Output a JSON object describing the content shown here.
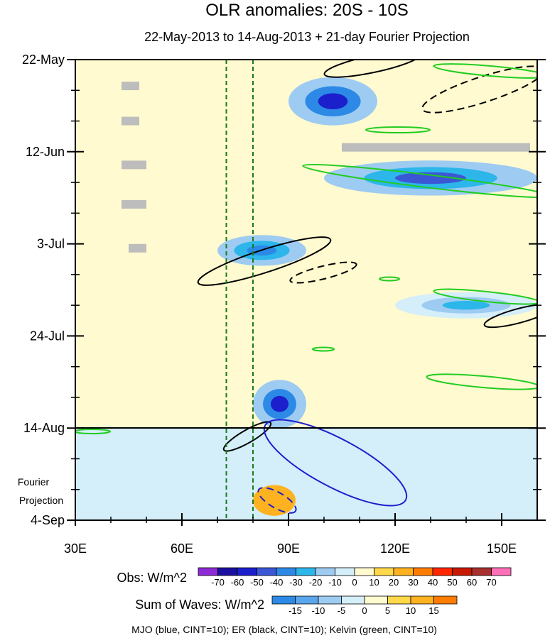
{
  "chart_data": {
    "type": "heatmap",
    "title": "OLR anomalies: 20S - 10S",
    "subtitle": "22-May-2013 to 14-Aug-2013 + 21-day Fourier Projection",
    "x_axis": {
      "range": [
        30,
        160
      ],
      "ticks": [
        30,
        60,
        90,
        120,
        150
      ],
      "tick_labels": [
        "30E",
        "60E",
        "90E",
        "120E",
        "150E"
      ]
    },
    "y_axis": {
      "range": [
        "22-May-2013",
        "4-Sep-2013"
      ],
      "ticks": [
        {
          "date": "2013-05-22",
          "label": "22-May"
        },
        {
          "date": "2013-06-12",
          "label": "12-Jun"
        },
        {
          "date": "2013-07-03",
          "label": "3-Jul"
        },
        {
          "date": "2013-07-24",
          "label": "24-Jul"
        },
        {
          "date": "2013-08-14",
          "label": "14-Aug"
        },
        {
          "date": "2013-09-04",
          "label": "4-Sep"
        }
      ],
      "projection_label_line1": "Fourier",
      "projection_label_line2": "Projection"
    },
    "observation_end": "2013-08-14",
    "reference_lines_lon": [
      72.5,
      80
    ],
    "obs_colorbar": {
      "label": "Obs: W/m^2",
      "levels": [
        "-70",
        "-60",
        "-50",
        "-40",
        "-30",
        "-20",
        "-10",
        "0",
        "10",
        "20",
        "30",
        "40",
        "50",
        "60",
        "70"
      ],
      "colors": [
        "#8e2bd6",
        "#1b0fa0",
        "#1c1fcc",
        "#3b57d6",
        "#2c8ae6",
        "#2cb6ea",
        "#9ecbf2",
        "#d4eefa",
        "#fffacf",
        "#ffd84b",
        "#ffb21f",
        "#ff7c00",
        "#ff2600",
        "#c81800",
        "#a8302f",
        "#ff70b8"
      ]
    },
    "waves_colorbar": {
      "label": "Sum of Waves: W/m^2",
      "levels": [
        "-15",
        "-10",
        "-5",
        "0",
        "5",
        "10",
        "15"
      ],
      "colors": [
        "#2c8ae6",
        "#59a6ec",
        "#9ecbf2",
        "#d4eefa",
        "#fffacf",
        "#ffd84b",
        "#ffb21f",
        "#ff7c00"
      ]
    },
    "contour_legend": "MJO (blue, CINT=10); ER (black, CINT=10); Kelvin (green, CINT=10)",
    "colors": {
      "mjo": "#1c1fcc",
      "er": "#000000",
      "kelvin": "#22cc22",
      "missing": "#bdbdbd",
      "ref_line": "#1a7a1a"
    },
    "anomaly_features": [
      {
        "lon": [
          90,
          115
        ],
        "date": [
          "2013-05-26",
          "2013-06-06"
        ],
        "value": -60,
        "kind": "obs"
      },
      {
        "lon": [
          100,
          160
        ],
        "date": [
          "2013-06-14",
          "2013-06-22"
        ],
        "value": -50,
        "kind": "obs"
      },
      {
        "lon": [
          70,
          95
        ],
        "date": [
          "2013-07-01",
          "2013-07-08"
        ],
        "value": -40,
        "kind": "obs"
      },
      {
        "lon": [
          120,
          160
        ],
        "date": [
          "2013-07-14",
          "2013-07-20"
        ],
        "value": -30,
        "kind": "obs"
      },
      {
        "lon": [
          80,
          95
        ],
        "date": [
          "2013-08-03",
          "2013-08-14"
        ],
        "value": -60,
        "kind": "obs"
      },
      {
        "lon": [
          85,
          120
        ],
        "date": [
          "2013-08-17",
          "2013-09-01"
        ],
        "value": -10,
        "kind": "proj"
      },
      {
        "lon": [
          80,
          92
        ],
        "date": [
          "2013-08-27",
          "2013-09-03"
        ],
        "value": 10,
        "kind": "proj"
      }
    ],
    "missing_data": [
      {
        "lon": [
          43,
          48
        ],
        "date": "2013-05-28"
      },
      {
        "lon": [
          43,
          48
        ],
        "date": "2013-06-05"
      },
      {
        "lon": [
          43,
          50
        ],
        "date": "2013-06-15"
      },
      {
        "lon": [
          43,
          50
        ],
        "date": "2013-06-24"
      },
      {
        "lon": [
          45,
          50
        ],
        "date": "2013-07-04"
      },
      {
        "lon": [
          105,
          158
        ],
        "date": "2013-06-11"
      }
    ]
  }
}
